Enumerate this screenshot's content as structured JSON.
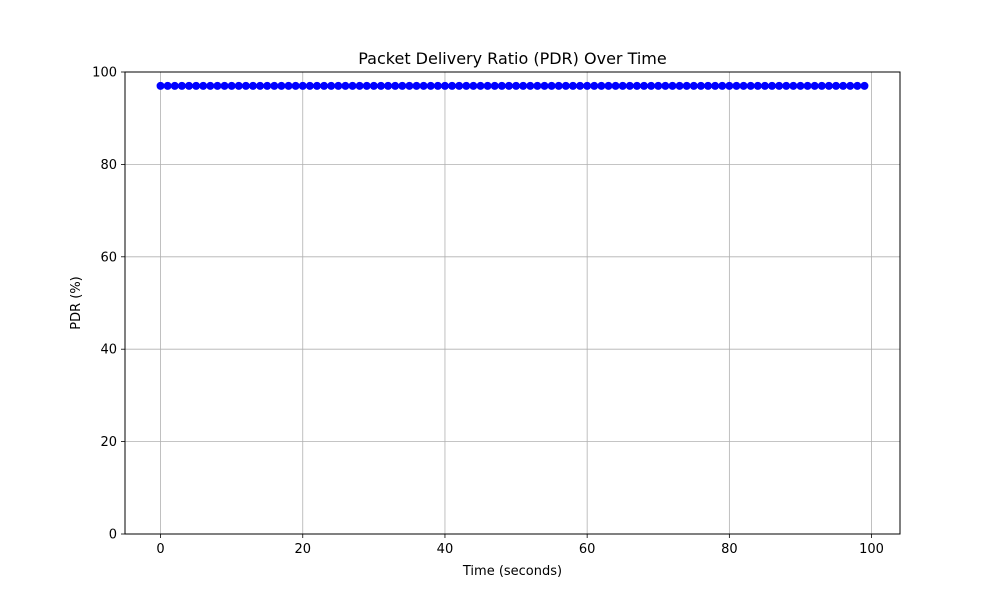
{
  "chart_data": {
    "type": "scatter",
    "title": "Packet Delivery Ratio (PDR) Over Time",
    "xlabel": "Time (seconds)",
    "ylabel": "PDR (%)",
    "xlim": [
      -5,
      104
    ],
    "ylim": [
      0,
      100
    ],
    "x_ticks": [
      0,
      20,
      40,
      60,
      80,
      100
    ],
    "y_ticks": [
      0,
      20,
      40,
      60,
      80,
      100
    ],
    "grid": true,
    "series": [
      {
        "color": "#0000ff",
        "marker": "circle",
        "x": [
          0,
          1,
          2,
          3,
          4,
          5,
          6,
          7,
          8,
          9,
          10,
          11,
          12,
          13,
          14,
          15,
          16,
          17,
          18,
          19,
          20,
          21,
          22,
          23,
          24,
          25,
          26,
          27,
          28,
          29,
          30,
          31,
          32,
          33,
          34,
          35,
          36,
          37,
          38,
          39,
          40,
          41,
          42,
          43,
          44,
          45,
          46,
          47,
          48,
          49,
          50,
          51,
          52,
          53,
          54,
          55,
          56,
          57,
          58,
          59,
          60,
          61,
          62,
          63,
          64,
          65,
          66,
          67,
          68,
          69,
          70,
          71,
          72,
          73,
          74,
          75,
          76,
          77,
          78,
          79,
          80,
          81,
          82,
          83,
          84,
          85,
          86,
          87,
          88,
          89,
          90,
          91,
          92,
          93,
          94,
          95,
          96,
          97,
          98,
          99
        ],
        "y": [
          97,
          97,
          97,
          97,
          97,
          97,
          97,
          97,
          97,
          97,
          97,
          97,
          97,
          97,
          97,
          97,
          97,
          97,
          97,
          97,
          97,
          97,
          97,
          97,
          97,
          97,
          97,
          97,
          97,
          97,
          97,
          97,
          97,
          97,
          97,
          97,
          97,
          97,
          97,
          97,
          97,
          97,
          97,
          97,
          97,
          97,
          97,
          97,
          97,
          97,
          97,
          97,
          97,
          97,
          97,
          97,
          97,
          97,
          97,
          97,
          97,
          97,
          97,
          97,
          97,
          97,
          97,
          97,
          97,
          97,
          97,
          97,
          97,
          97,
          97,
          97,
          97,
          97,
          97,
          97,
          97,
          97,
          97,
          97,
          97,
          97,
          97,
          97,
          97,
          97,
          97,
          97,
          97,
          97,
          97,
          97,
          97,
          97,
          97,
          97
        ]
      }
    ]
  }
}
